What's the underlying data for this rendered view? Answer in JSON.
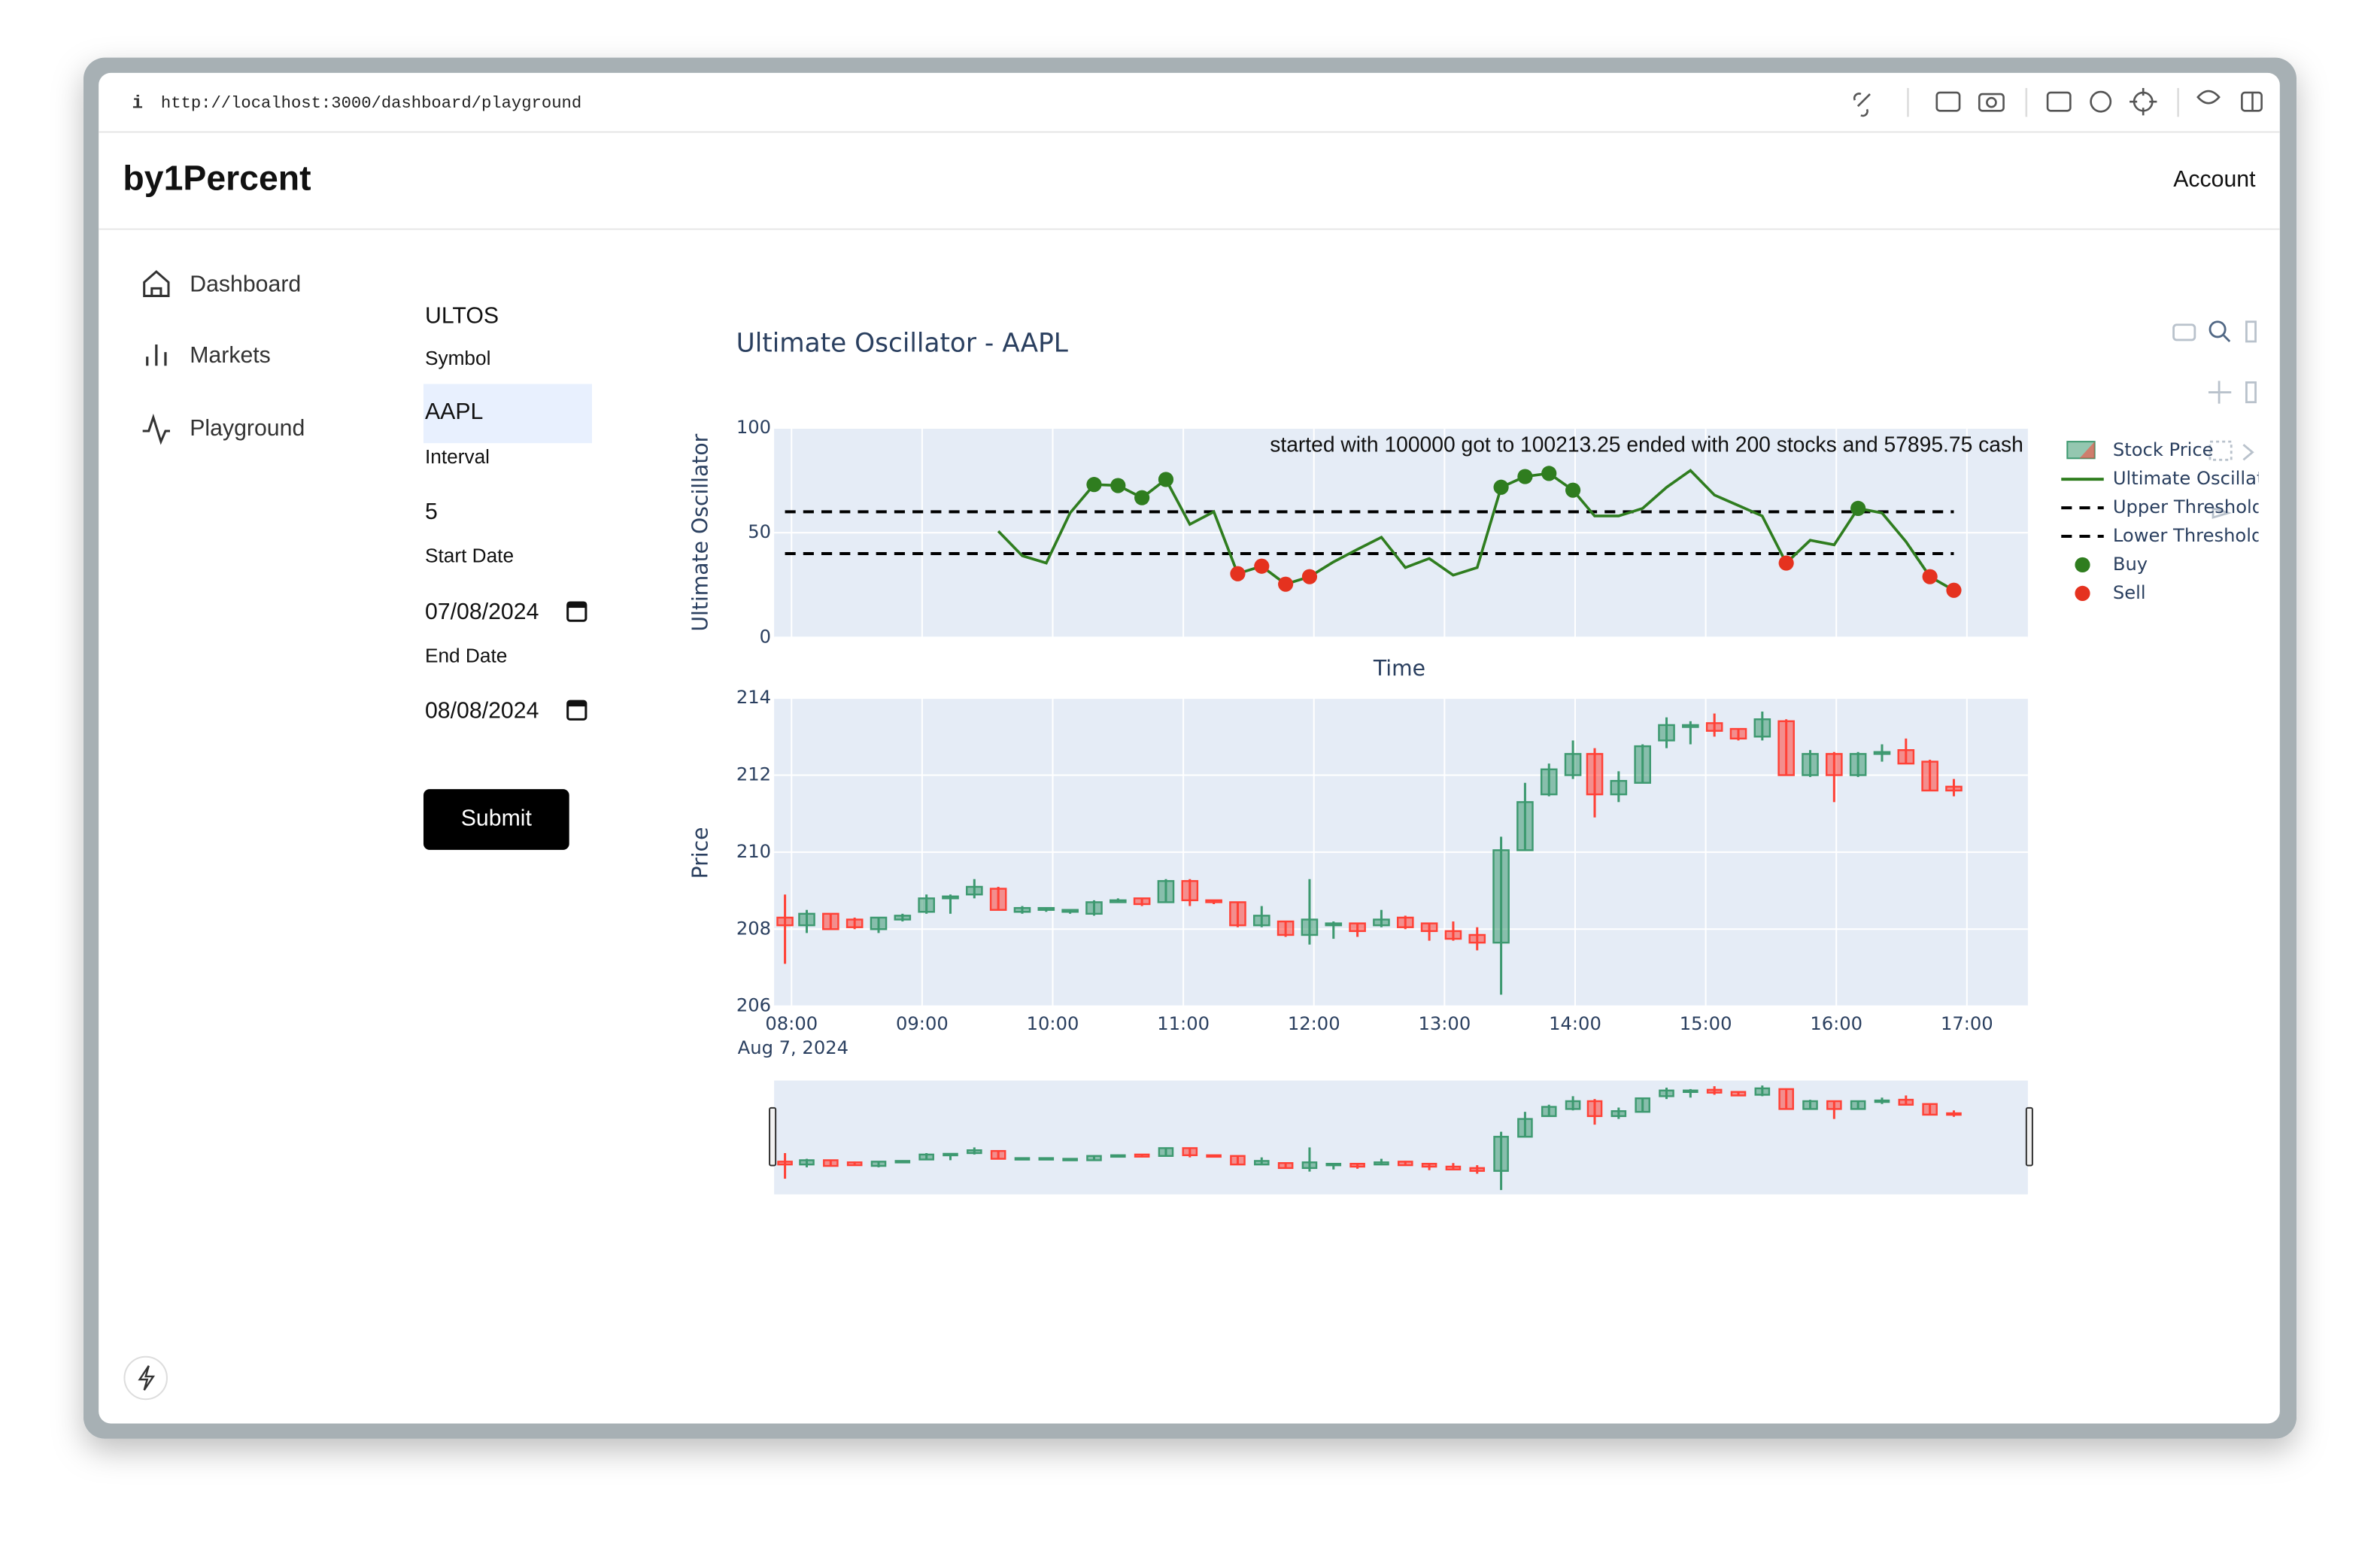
{
  "browser": {
    "url": "http://localhost:3000/dashboard/playground"
  },
  "header": {
    "brand": "by1Percent",
    "account": "Account"
  },
  "sidebar": {
    "items": [
      "Dashboard",
      "Markets",
      "Playground"
    ]
  },
  "form": {
    "title": "ULTOS",
    "fields": [
      {
        "label": "Symbol",
        "value": "AAPL"
      },
      {
        "label": "Interval",
        "value": "5"
      },
      {
        "label": "Start Date",
        "value": "07/08/2024"
      },
      {
        "label": "End Date",
        "value": "08/08/2024"
      }
    ],
    "submit": "Submit"
  },
  "chart_data": {
    "type": "candlestick",
    "title": "Ultimate Oscillator - AAPL",
    "date_label": "Aug 7, 2024",
    "grid": true,
    "xlim": [
      "07:52",
      "17:28"
    ],
    "xticks": [
      "08:00",
      "09:00",
      "10:00",
      "11:00",
      "12:00",
      "13:00",
      "14:00",
      "15:00",
      "16:00",
      "17:00"
    ],
    "x": [
      "07:57",
      "08:07",
      "08:18",
      "08:29",
      "08:40",
      "08:51",
      "09:02",
      "09:13",
      "09:24",
      "09:35",
      "09:46",
      "09:57",
      "10:08",
      "10:19",
      "10:30",
      "10:41",
      "10:52",
      "11:03",
      "11:14",
      "11:25",
      "11:36",
      "11:47",
      "11:58",
      "12:09",
      "12:20",
      "12:31",
      "12:42",
      "12:53",
      "13:04",
      "13:15",
      "13:26",
      "13:37",
      "13:48",
      "13:59",
      "14:09",
      "14:20",
      "14:31",
      "14:42",
      "14:53",
      "15:04",
      "15:15",
      "15:26",
      "15:37",
      "15:48",
      "15:59",
      "16:10",
      "16:21",
      "16:32",
      "16:43",
      "16:54"
    ],
    "oscillator": {
      "x_label": "Time",
      "y_label": "Ultimate Oscillator",
      "ylim": [
        0,
        100
      ],
      "yticks": [
        0,
        50,
        100
      ],
      "annotation": "started with 100000 got to 100213.25 ended with 200 stocks and 57895.75 cash",
      "series": [
        {
          "name": "Ultimate Oscillator",
          "color": "#2f7d1f",
          "values": [
            null,
            null,
            null,
            null,
            null,
            null,
            null,
            null,
            null,
            50.7,
            39,
            35.5,
            59.4,
            73,
            72.5,
            66.7,
            75.4,
            54,
            60,
            30.4,
            34,
            25.4,
            29,
            36,
            42,
            47.8,
            33.3,
            37.7,
            29.7,
            33.3,
            71.7,
            76.8,
            78.3,
            70.3,
            58,
            58,
            61.6,
            71.7,
            79.7,
            68,
            63,
            58,
            35.5,
            46.4,
            44.2,
            61.6,
            59.4,
            45.7,
            29,
            22.5
          ]
        }
      ],
      "thresholds": [
        {
          "name": "Upper Threshold",
          "value": 60,
          "color": "#000000"
        },
        {
          "name": "Lower Threshold",
          "value": 40,
          "color": "#000000"
        }
      ],
      "signals": [
        {
          "name": "Buy",
          "color": "#2f7d1f",
          "values": [
            null,
            null,
            null,
            null,
            null,
            null,
            null,
            null,
            null,
            null,
            null,
            null,
            null,
            73,
            72.5,
            66.7,
            75.4,
            null,
            null,
            null,
            null,
            null,
            null,
            null,
            null,
            null,
            null,
            null,
            null,
            null,
            71.7,
            76.8,
            78.3,
            70.3,
            null,
            null,
            null,
            null,
            null,
            null,
            null,
            null,
            null,
            null,
            null,
            61.6,
            null,
            null,
            null,
            null
          ]
        },
        {
          "name": "Sell",
          "color": "#e5321f",
          "values": [
            null,
            null,
            null,
            null,
            null,
            null,
            null,
            null,
            null,
            null,
            null,
            null,
            null,
            null,
            null,
            null,
            null,
            null,
            null,
            30.4,
            34,
            25.4,
            29,
            null,
            null,
            null,
            null,
            null,
            null,
            null,
            null,
            null,
            null,
            null,
            null,
            null,
            null,
            null,
            null,
            null,
            null,
            null,
            35.5,
            null,
            null,
            null,
            null,
            null,
            29,
            22.5
          ]
        }
      ]
    },
    "price": {
      "name": "Stock Price",
      "y_label": "Price",
      "ylim": [
        206,
        214
      ],
      "yticks": [
        206,
        208,
        210,
        212,
        214
      ],
      "increasing_color": "#3d9970",
      "decreasing_color": "#ff4136",
      "open": [
        208.3,
        208.1,
        208.4,
        208.25,
        208.0,
        208.25,
        208.45,
        208.8,
        208.9,
        209.05,
        208.45,
        208.5,
        208.45,
        208.4,
        208.7,
        208.8,
        208.7,
        209.25,
        208.75,
        208.7,
        208.1,
        208.2,
        207.85,
        208.1,
        208.15,
        208.1,
        208.3,
        208.15,
        207.95,
        207.85,
        207.65,
        210.05,
        211.5,
        212.0,
        212.55,
        211.5,
        211.8,
        212.9,
        213.25,
        213.35,
        213.2,
        213.0,
        213.4,
        212.0,
        212.55,
        212.0,
        212.55,
        212.65,
        212.35,
        211.7
      ],
      "high": [
        208.9,
        208.5,
        208.4,
        208.3,
        208.3,
        208.4,
        208.9,
        208.9,
        209.3,
        209.1,
        208.6,
        208.55,
        208.5,
        208.75,
        208.8,
        208.8,
        209.3,
        209.3,
        208.75,
        208.7,
        208.6,
        208.2,
        209.3,
        208.2,
        208.15,
        208.5,
        208.35,
        208.15,
        208.2,
        208.05,
        210.4,
        211.8,
        212.3,
        212.9,
        212.7,
        212.1,
        212.8,
        213.5,
        213.4,
        213.6,
        213.2,
        213.65,
        213.45,
        212.65,
        212.6,
        212.6,
        212.8,
        212.95,
        212.4,
        211.9
      ],
      "low": [
        207.1,
        207.9,
        208.0,
        208.0,
        207.9,
        208.2,
        208.4,
        208.4,
        208.8,
        208.5,
        208.4,
        208.45,
        208.4,
        208.35,
        208.7,
        208.6,
        208.7,
        208.6,
        208.65,
        208.05,
        208.05,
        207.8,
        207.6,
        207.75,
        207.8,
        208.05,
        208.0,
        207.7,
        207.7,
        207.45,
        206.3,
        210.05,
        211.45,
        211.9,
        210.9,
        211.3,
        211.8,
        212.7,
        212.8,
        213.0,
        212.9,
        212.9,
        212.0,
        211.95,
        211.3,
        211.95,
        212.35,
        212.3,
        211.6,
        211.45
      ],
      "close": [
        208.1,
        208.4,
        208.0,
        208.05,
        208.3,
        208.35,
        208.8,
        208.85,
        209.1,
        208.5,
        208.55,
        208.55,
        208.5,
        208.7,
        208.75,
        208.65,
        209.25,
        208.75,
        208.7,
        208.1,
        208.35,
        207.85,
        208.25,
        208.15,
        207.95,
        208.25,
        208.05,
        207.95,
        207.75,
        207.65,
        210.05,
        211.3,
        212.15,
        212.55,
        211.5,
        211.85,
        212.75,
        213.3,
        213.3,
        213.15,
        212.95,
        213.45,
        212.0,
        212.55,
        212.0,
        212.55,
        212.6,
        212.3,
        211.6,
        211.6
      ]
    }
  }
}
